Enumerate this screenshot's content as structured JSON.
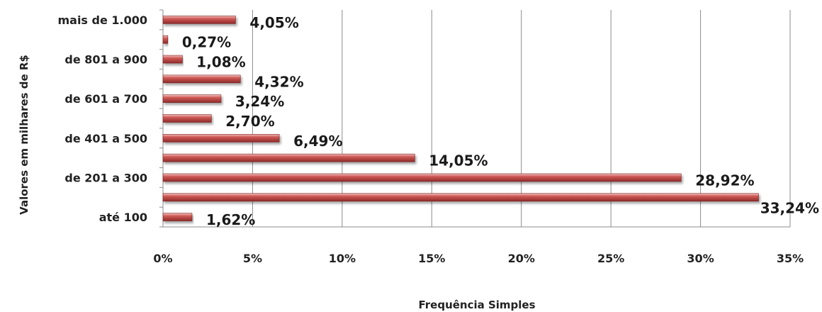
{
  "chart_data": {
    "type": "bar",
    "orientation": "horizontal",
    "categories": [
      "até 100",
      "",
      "de 201 a 300",
      "",
      "de 401 a 500",
      "",
      "de 601 a 700",
      "",
      "de 801 a 900",
      "",
      "mais de 1.000"
    ],
    "values": [
      1.62,
      33.24,
      28.92,
      14.05,
      6.49,
      2.7,
      3.24,
      4.32,
      1.08,
      0.27,
      4.05
    ],
    "data_labels": [
      "1,62%",
      "33,24%",
      "28,92%",
      "14,05%",
      "6,49%",
      "2,70%",
      "3,24%",
      "4,32%",
      "1,08%",
      "0,27%",
      "4,05%"
    ],
    "xlabel": "Frequência Simples",
    "ylabel": "Valores em milhares de R$",
    "xlim": [
      0,
      35
    ],
    "xticks": [
      "0%",
      "5%",
      "10%",
      "15%",
      "20%",
      "25%",
      "30%",
      "35%"
    ],
    "grid": "vertical",
    "bar_color": "#c0504d"
  }
}
